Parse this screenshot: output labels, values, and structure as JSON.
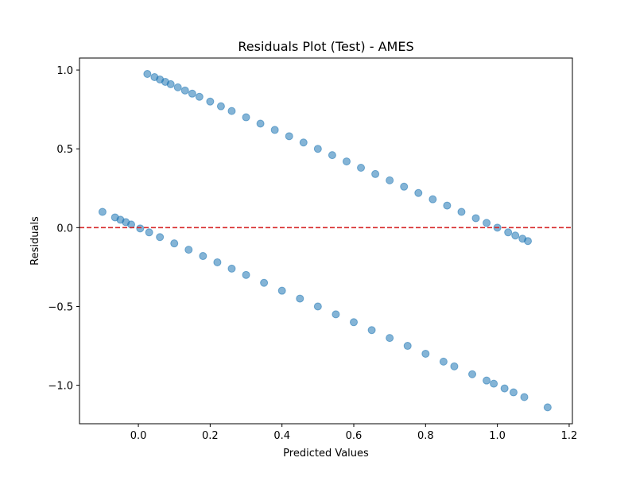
{
  "chart_data": {
    "type": "scatter",
    "title": "Residuals Plot (Test) - AMES",
    "x_label": "Predicted Values",
    "y_label": "Residuals",
    "xlim": [
      -0.164,
      1.209
    ],
    "ylim": [
      -1.244,
      1.076
    ],
    "xticks": [
      {
        "value": 0,
        "label": "0.0"
      },
      0.2,
      0.4,
      0.6,
      0.8,
      {
        "value": 1,
        "label": "1.0"
      },
      1.2
    ],
    "yticks": [
      {
        "value": -1,
        "label": "−1.0"
      },
      {
        "value": -0.5,
        "label": "−0.5"
      },
      {
        "value": 0,
        "label": "0.0"
      },
      0.5,
      {
        "value": 1,
        "label": "1.0"
      }
    ],
    "grid": false,
    "reference_line": {
      "y": 0,
      "color": "#d62728",
      "style": "dashed"
    },
    "series": [
      {
        "color": "#1f77b4",
        "opacity": 0.55,
        "x": [
          0.025,
          0.045,
          0.06,
          0.075,
          0.09,
          0.11,
          0.13,
          0.15,
          0.17,
          0.2,
          0.23,
          0.26,
          0.3,
          0.34,
          0.38,
          0.42,
          0.46,
          0.5,
          0.54,
          0.58,
          0.62,
          0.66,
          0.7,
          0.74,
          0.78,
          0.82,
          0.86,
          0.9,
          0.94,
          0.97,
          1.0,
          1.03,
          1.05,
          1.07,
          1.085,
          -0.1,
          -0.065,
          -0.05,
          -0.035,
          -0.02,
          0.005,
          0.03,
          0.06,
          0.1,
          0.14,
          0.18,
          0.22,
          0.26,
          0.3,
          0.35,
          0.4,
          0.45,
          0.5,
          0.55,
          0.6,
          0.65,
          0.7,
          0.75,
          0.8,
          0.85,
          0.88,
          0.93,
          0.97,
          0.99,
          1.02,
          1.045,
          1.075,
          1.14
        ],
        "values": [
          0.975,
          0.955,
          0.94,
          0.925,
          0.91,
          0.89,
          0.87,
          0.85,
          0.83,
          0.8,
          0.77,
          0.74,
          0.7,
          0.66,
          0.62,
          0.58,
          0.54,
          0.5,
          0.46,
          0.42,
          0.38,
          0.34,
          0.3,
          0.26,
          0.22,
          0.18,
          0.14,
          0.1,
          0.06,
          0.03,
          0,
          -0.03,
          -0.05,
          -0.07,
          -0.085,
          0.1,
          0.065,
          0.05,
          0.035,
          0.02,
          -0.005,
          -0.03,
          -0.06,
          -0.1,
          -0.14,
          -0.18,
          -0.22,
          -0.26,
          -0.3,
          -0.35,
          -0.4,
          -0.45,
          -0.5,
          -0.55,
          -0.6,
          -0.65,
          -0.7,
          -0.75,
          -0.8,
          -0.85,
          -0.88,
          -0.93,
          -0.97,
          -0.99,
          -1.02,
          -1.045,
          -1.075,
          -1.14
        ]
      }
    ]
  }
}
